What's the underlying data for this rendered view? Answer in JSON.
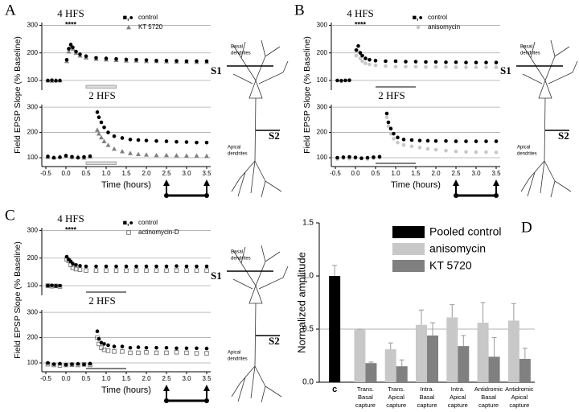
{
  "chart_data": [
    {
      "type": "scatter",
      "panel_label": "A",
      "xlabel": "Time (hours)",
      "ylabel": "Field EPSP Slope (% Baseline)",
      "xlim": [
        -0.6,
        3.6
      ],
      "xticks": [
        -0.5,
        {
          "value": 0,
          "label": "0.0"
        },
        0.5,
        {
          "value": 1,
          "label": "1.0"
        },
        1.5,
        {
          "value": 2,
          "label": "2.0"
        },
        2.5,
        {
          "value": 3,
          "label": "3.0"
        },
        3.5
      ],
      "sampling_times": [
        2.5,
        3.5
      ],
      "neuron": {
        "basal": [
          "Basal",
          "dendrites"
        ],
        "apical": [
          "Apical",
          "dendrites"
        ],
        "s1": "S1",
        "s2": "S2"
      },
      "subplots": [
        {
          "annotation": "4 HFS",
          "stim_marks": "****",
          "ylim": [
            65,
            310
          ],
          "yticks": [
            100,
            200,
            300
          ],
          "grid": true,
          "drug_bar": [
            0.5,
            1.25
          ],
          "drug_bar_style": "box",
          "x": [
            -0.45,
            -0.35,
            -0.25,
            -0.15,
            0.02,
            0.07,
            0.12,
            0.17,
            0.25,
            0.35,
            0.5,
            0.75,
            1.0,
            1.25,
            1.5,
            1.75,
            2.0,
            2.25,
            2.5,
            2.75,
            3.0,
            3.25,
            3.5
          ],
          "series": [
            {
              "name": "control",
              "symbol": "■,●",
              "color": "#000000",
              "marker": "circle",
              "values": [
                100,
                101,
                99,
                100,
                175,
                215,
                230,
                220,
                205,
                195,
                188,
                182,
                180,
                178,
                176,
                175,
                174,
                172,
                172,
                171,
                170,
                170,
                170
              ]
            },
            {
              "name": "KT 5720",
              "color": "#808080",
              "marker": "triangle",
              "values": [
                100,
                99,
                101,
                100,
                170,
                205,
                222,
                215,
                200,
                190,
                183,
                178,
                176,
                174,
                172,
                172,
                170,
                170,
                169,
                168,
                168,
                167,
                167
              ]
            }
          ]
        },
        {
          "annotation": "2 HFS",
          "ylim": [
            65,
            310
          ],
          "yticks": [
            100,
            200,
            300
          ],
          "grid": true,
          "drug_bar": [
            0.5,
            1.25
          ],
          "drug_bar_style": "box",
          "x": [
            -0.45,
            -0.3,
            -0.15,
            0.0,
            0.15,
            0.3,
            0.45,
            0.6,
            0.78,
            0.82,
            0.88,
            0.95,
            1.05,
            1.2,
            1.4,
            1.6,
            1.8,
            2.0,
            2.25,
            2.5,
            2.75,
            3.0,
            3.25,
            3.5
          ],
          "series": [
            {
              "color": "#000000",
              "marker": "circle",
              "values": [
                105,
                100,
                102,
                108,
                104,
                100,
                103,
                106,
                280,
                260,
                240,
                220,
                200,
                185,
                178,
                172,
                170,
                168,
                166,
                165,
                163,
                162,
                160,
                160
              ]
            },
            {
              "color": "#808080",
              "marker": "triangle",
              "values": [
                103,
                101,
                104,
                106,
                102,
                104,
                100,
                105,
                210,
                195,
                180,
                165,
                150,
                135,
                125,
                118,
                114,
                112,
                110,
                110,
                109,
                108,
                108,
                107
              ]
            }
          ]
        }
      ]
    },
    {
      "type": "scatter",
      "panel_label": "B",
      "xlabel": "Time (hours)",
      "ylabel": "Field EPSP Slope (% Baseline)",
      "xlim": [
        -0.6,
        3.6
      ],
      "xticks": [
        -0.5,
        {
          "value": 0,
          "label": "0.0"
        },
        0.5,
        {
          "value": 1,
          "label": "1.0"
        },
        1.5,
        {
          "value": 2,
          "label": "2.0"
        },
        2.5,
        {
          "value": 3,
          "label": "3.0"
        },
        3.5
      ],
      "sampling_times": [
        2.5,
        3.5
      ],
      "neuron": {
        "basal": [
          "Basal",
          "dendrites"
        ],
        "apical": [
          "Apical",
          "dendrites"
        ],
        "s1": "S1",
        "s2": "S2"
      },
      "subplots": [
        {
          "annotation": "4 HFS",
          "stim_marks": "****",
          "ylim": [
            65,
            310
          ],
          "yticks": [
            100,
            200,
            300
          ],
          "grid": true,
          "drug_bar": [
            0.5,
            1.5
          ],
          "drug_bar_style": "line",
          "x": [
            -0.45,
            -0.35,
            -0.25,
            -0.15,
            0.02,
            0.07,
            0.12,
            0.17,
            0.25,
            0.35,
            0.5,
            0.75,
            1.0,
            1.25,
            1.5,
            1.75,
            2.0,
            2.25,
            2.5,
            2.75,
            3.0,
            3.25,
            3.5
          ],
          "series": [
            {
              "name": "control",
              "symbol": "■,●",
              "color": "#000000",
              "marker": "circle",
              "values": [
                100,
                99,
                100,
                101,
                210,
                225,
                200,
                190,
                180,
                175,
                172,
                170,
                170,
                168,
                168,
                167,
                167,
                166,
                166,
                165,
                165,
                165,
                165
              ]
            },
            {
              "name": "anisomycin",
              "color": "#c8c8c8",
              "marker": "circle",
              "values": [
                100,
                98,
                101,
                99,
                190,
                205,
                180,
                170,
                162,
                158,
                155,
                152,
                150,
                150,
                150,
                149,
                149,
                149,
                148,
                148,
                148,
                148,
                148
              ]
            }
          ]
        },
        {
          "annotation": "2 HFS",
          "ylim": [
            65,
            310
          ],
          "yticks": [
            100,
            200,
            300
          ],
          "grid": true,
          "drug_bar": [
            0.5,
            1.5
          ],
          "drug_bar_style": "line",
          "x": [
            -0.45,
            -0.3,
            -0.15,
            0.0,
            0.15,
            0.3,
            0.45,
            0.6,
            0.78,
            0.82,
            0.88,
            0.95,
            1.05,
            1.2,
            1.4,
            1.6,
            1.8,
            2.0,
            2.25,
            2.5,
            2.75,
            3.0,
            3.25,
            3.5
          ],
          "series": [
            {
              "color": "#000000",
              "marker": "circle",
              "values": [
                100,
                102,
                103,
                101,
                98,
                100,
                102,
                104,
                275,
                240,
                215,
                195,
                180,
                172,
                170,
                168,
                167,
                166,
                166,
                165,
                165,
                165,
                165,
                165
              ]
            },
            {
              "color": "#c8c8c8",
              "marker": "circle",
              "values": [
                95,
                98,
                96,
                99,
                97,
                95,
                98,
                100,
                260,
                225,
                195,
                175,
                160,
                150,
                145,
                140,
                135,
                132,
                128,
                125,
                123,
                122,
                122,
                121
              ]
            }
          ]
        }
      ]
    },
    {
      "type": "scatter",
      "panel_label": "C",
      "xlabel": "Time (hours)",
      "ylabel": "Field EPSP Slope (% Baseline)",
      "xlim": [
        -0.6,
        3.6
      ],
      "xticks": [
        -0.5,
        {
          "value": 0,
          "label": "0.0"
        },
        0.5,
        {
          "value": 1,
          "label": "1.0"
        },
        1.5,
        {
          "value": 2,
          "label": "2.0"
        },
        2.5,
        {
          "value": 3,
          "label": "3.0"
        },
        3.5
      ],
      "sampling_times": [
        2.5,
        3.5
      ],
      "neuron": {
        "basal": [
          "Basal",
          "dendrites"
        ],
        "apical": [
          "Apical",
          "dendrites"
        ],
        "s1": "S1",
        "s2": "S2"
      },
      "subplots": [
        {
          "annotation": "4 HFS",
          "stim_marks": "****",
          "ylim": [
            65,
            310
          ],
          "yticks": [
            100,
            200,
            300
          ],
          "grid": true,
          "drug_bar": [
            0.5,
            1.5
          ],
          "drug_bar_style": "line",
          "x": [
            -0.45,
            -0.35,
            -0.25,
            -0.15,
            0.02,
            0.07,
            0.12,
            0.17,
            0.25,
            0.35,
            0.5,
            0.75,
            1.0,
            1.25,
            1.5,
            1.75,
            2.0,
            2.25,
            2.5,
            2.75,
            3.0,
            3.25,
            3.5
          ],
          "series": [
            {
              "name": "control",
              "symbol": "■,●",
              "color": "#000000",
              "marker": "circle",
              "values": [
                100,
                101,
                99,
                100,
                205,
                195,
                188,
                180,
                175,
                172,
                170,
                170,
                170,
                170,
                170,
                170,
                170,
                170,
                170,
                171,
                170,
                170,
                170
              ]
            },
            {
              "name": "actinomycin-D",
              "color": "#707070",
              "marker": "open-square",
              "values": [
                100,
                98,
                99,
                97,
                195,
                190,
                175,
                165,
                160,
                158,
                155,
                155,
                155,
                155,
                155,
                155,
                155,
                155,
                155,
                155,
                155,
                155,
                155
              ]
            }
          ]
        },
        {
          "annotation": "2 HFS",
          "ylim": [
            65,
            310
          ],
          "yticks": [
            100,
            200,
            300
          ],
          "grid": true,
          "drug_bar": [
            0.5,
            1.5
          ],
          "drug_bar_style": "line",
          "x": [
            -0.45,
            -0.3,
            -0.15,
            0.0,
            0.15,
            0.3,
            0.45,
            0.6,
            0.78,
            0.82,
            0.88,
            0.95,
            1.05,
            1.2,
            1.4,
            1.6,
            1.8,
            2.0,
            2.25,
            2.5,
            2.75,
            3.0,
            3.25,
            3.5
          ],
          "series": [
            {
              "color": "#000000",
              "marker": "circle",
              "values": [
                100,
                95,
                97,
                93,
                95,
                96,
                94,
                97,
                225,
                195,
                180,
                175,
                170,
                165,
                165,
                160,
                162,
                160,
                160,
                160,
                158,
                158,
                158,
                157
              ]
            },
            {
              "color": "#707070",
              "marker": "open-square",
              "values": [
                95,
                92,
                90,
                92,
                93,
                92,
                94,
                92,
                200,
                175,
                160,
                152,
                148,
                145,
                145,
                140,
                140,
                142,
                140,
                140,
                142,
                140,
                138,
                138
              ]
            }
          ]
        }
      ]
    },
    {
      "type": "bar",
      "panel_label": "D",
      "ylabel": "Normalized amplitude",
      "ylim": [
        0,
        1.5
      ],
      "yticks": [
        {
          "value": 0,
          "label": "0.0"
        },
        0.5,
        {
          "value": 1,
          "label": "1.0"
        },
        1.5
      ],
      "reference_line": 0.5,
      "categories": [
        [
          "c"
        ],
        [
          "Trans.",
          "Basal",
          "capture"
        ],
        [
          "Trans.",
          "Apical",
          "capture"
        ],
        [
          "Intra.",
          "Basal",
          "capture"
        ],
        [
          "Intra.",
          "Apical",
          "capture"
        ],
        [
          "Antidromic",
          "Basal",
          "capture"
        ],
        [
          "Antidromic",
          "Apical",
          "capture"
        ]
      ],
      "series": [
        {
          "name": "Pooled control",
          "color": "#000000",
          "values": [
            1.0,
            null,
            null,
            null,
            null,
            null,
            null
          ],
          "errors": [
            0.1,
            null,
            null,
            null,
            null,
            null,
            null
          ]
        },
        {
          "name": "anisomycin",
          "color": "#c8c8c8",
          "values": [
            null,
            0.5,
            0.31,
            0.54,
            0.61,
            0.56,
            0.58
          ],
          "errors": [
            null,
            0,
            0.06,
            0.14,
            0.12,
            0.19,
            0.16
          ]
        },
        {
          "name": "KT 5720",
          "color": "#808080",
          "values": [
            null,
            0.18,
            0.15,
            0.44,
            0.34,
            0.24,
            0.22
          ],
          "errors": [
            null,
            0.01,
            0.06,
            0.12,
            0.1,
            0.18,
            0.1
          ]
        }
      ]
    }
  ]
}
